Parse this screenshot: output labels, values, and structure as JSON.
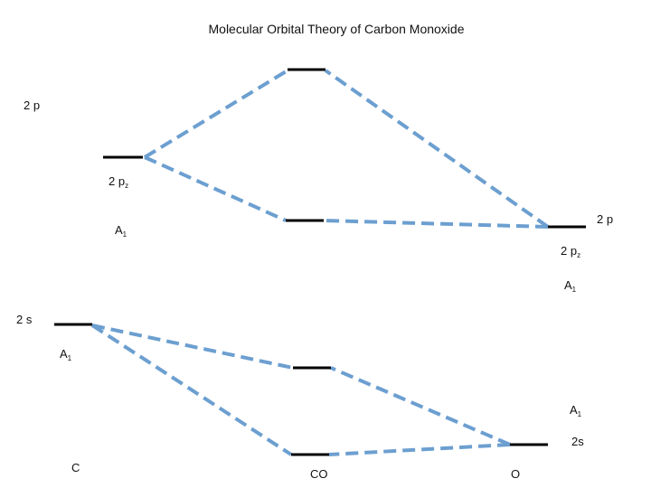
{
  "title": "Molecular Orbital Theory of Carbon Monoxide",
  "colors": {
    "level": "#000000",
    "connector": "#6c9fd0"
  },
  "atoms": {
    "left": "C",
    "center": "CO",
    "right": "O"
  },
  "labels": {
    "c_2p": "2 p",
    "c_2pz_main": "2 p",
    "c_2pz_sub": "z",
    "c_a1_upper_main": "A",
    "c_a1_upper_sub": "1",
    "c_2s": "2 s",
    "c_a1_lower_main": "A",
    "c_a1_lower_sub": "1",
    "o_2p": "2 p",
    "o_2pz_main": "2 p",
    "o_2pz_sub": "z",
    "o_a1_upper_main": "A",
    "o_a1_upper_sub": "1",
    "o_a1_lower_main": "A",
    "o_a1_lower_sub": "1",
    "o_2s": "2s"
  }
}
